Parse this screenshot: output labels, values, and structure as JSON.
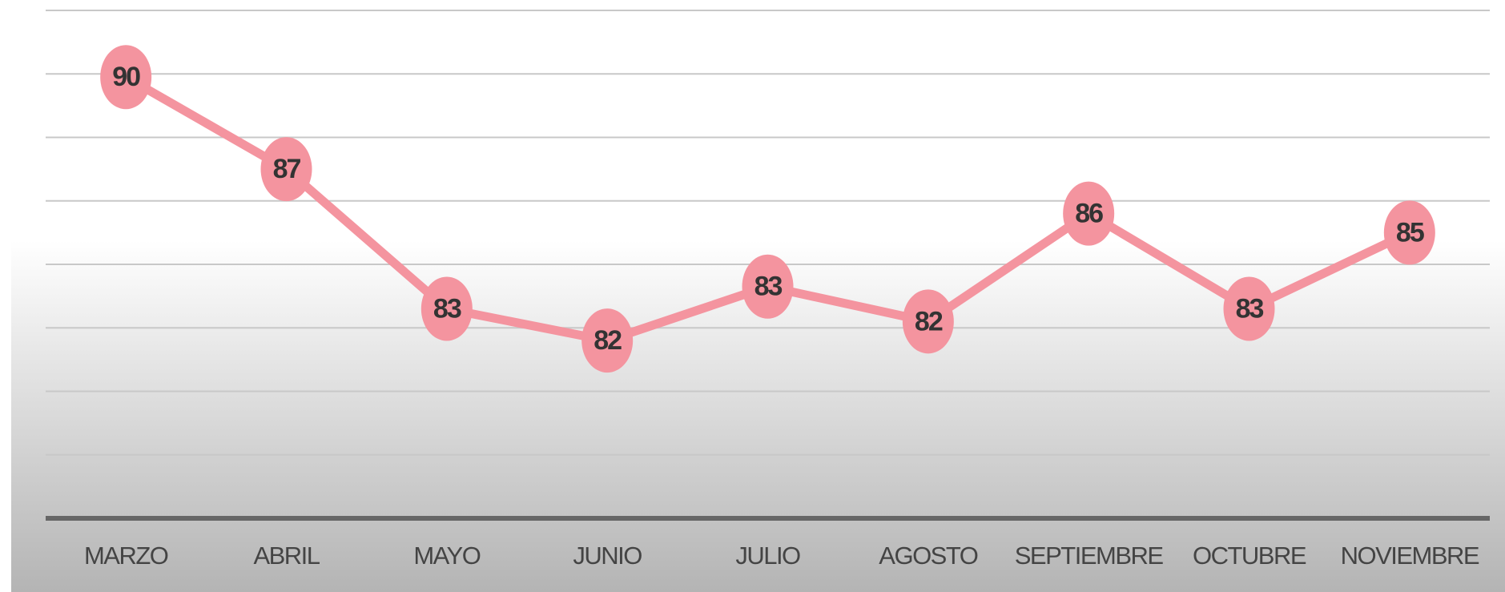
{
  "chart_data": {
    "type": "line",
    "categories": [
      "MARZO",
      "ABRIL",
      "MAYO",
      "JUNIO",
      "JULIO",
      "AGOSTO",
      "SEPTIEMBRE",
      "OCTUBRE",
      "NOVIEMBRE"
    ],
    "values": [
      89.9,
      87.0,
      82.6,
      81.6,
      83.3,
      82.2,
      85.6,
      82.6,
      85.0
    ],
    "value_labels": [
      "90",
      "87",
      "83",
      "82",
      "83",
      "82",
      "86",
      "83",
      "85"
    ],
    "color": "#f4949f",
    "ylim": [
      76,
      92
    ],
    "yticks": [
      76,
      78,
      80,
      82,
      84,
      86,
      88,
      90,
      92
    ],
    "grid": true
  }
}
